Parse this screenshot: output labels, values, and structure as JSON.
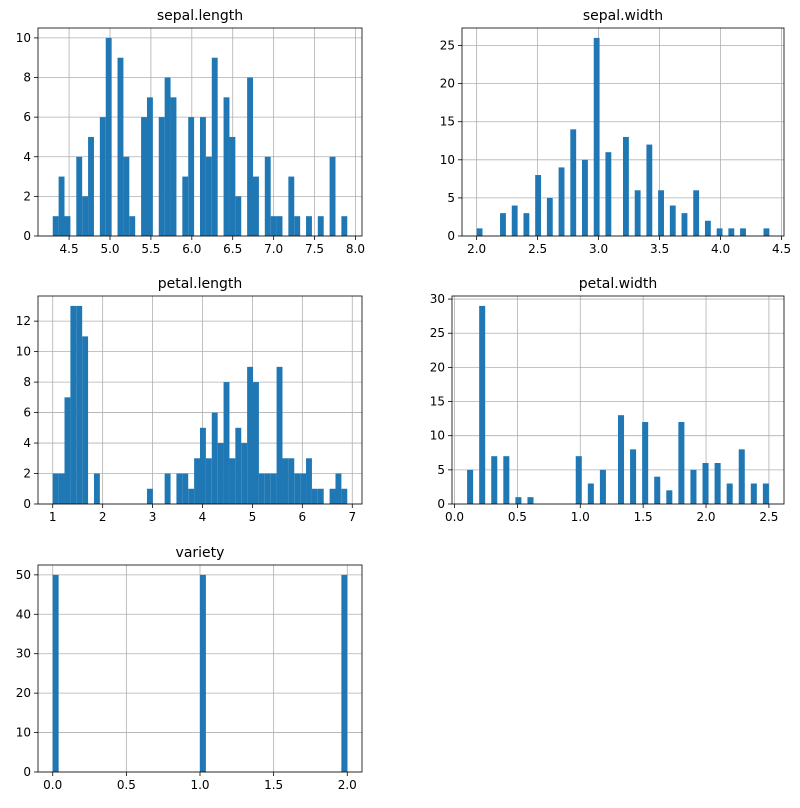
{
  "chart_data": [
    {
      "type": "histogram",
      "title": "sepal.length",
      "color": "#1f77b4",
      "grid": true,
      "bins": [
        4.3,
        4.372,
        4.444,
        4.516,
        4.588,
        4.66,
        4.732,
        4.804,
        4.876,
        4.948,
        5.02,
        5.092,
        5.164,
        5.236,
        5.308,
        5.38,
        5.452,
        5.524,
        5.596,
        5.668,
        5.74,
        5.812,
        5.884,
        5.956,
        6.028,
        6.1,
        6.172,
        6.244,
        6.316,
        6.388,
        6.46,
        6.532,
        6.604,
        6.676,
        6.748,
        6.82,
        6.892,
        6.964,
        7.036,
        7.108,
        7.18,
        7.252,
        7.324,
        7.396,
        7.468,
        7.54,
        7.612,
        7.684,
        7.756,
        7.828,
        7.9
      ],
      "counts": [
        1,
        3,
        1,
        0,
        4,
        2,
        5,
        0,
        6,
        10,
        0,
        9,
        4,
        1,
        0,
        6,
        7,
        0,
        6,
        8,
        7,
        0,
        3,
        6,
        0,
        6,
        4,
        9,
        0,
        7,
        5,
        2,
        0,
        8,
        3,
        0,
        4,
        1,
        1,
        0,
        3,
        1,
        0,
        1,
        0,
        1,
        0,
        4,
        0,
        1
      ],
      "xlim": [
        4.12,
        8.08
      ],
      "ylim": [
        0,
        10.5
      ],
      "xticks": [
        4.5,
        {
          "value": 5,
          "label": "5.0"
        },
        5.5,
        {
          "value": 6,
          "label": "6.0"
        },
        6.5,
        {
          "value": 7,
          "label": "7.0"
        },
        7.5,
        {
          "value": 8,
          "label": "8.0"
        }
      ],
      "yticks": [
        0,
        2,
        4,
        6,
        8,
        10
      ]
    },
    {
      "type": "histogram",
      "title": "sepal.width",
      "color": "#1f77b4",
      "grid": true,
      "bins": [
        2,
        2.048,
        2.096,
        2.144,
        2.192,
        2.24,
        2.288,
        2.336,
        2.384,
        2.432,
        2.48,
        2.528,
        2.576,
        2.624,
        2.672,
        2.72,
        2.768,
        2.816,
        2.864,
        2.912,
        2.96,
        3.008,
        3.056,
        3.104,
        3.152,
        3.2,
        3.248,
        3.296,
        3.344,
        3.392,
        3.44,
        3.488,
        3.536,
        3.584,
        3.632,
        3.68,
        3.728,
        3.776,
        3.824,
        3.872,
        3.92,
        3.968,
        4.016,
        4.064,
        4.112,
        4.16,
        4.208,
        4.256,
        4.304,
        4.352,
        4.4
      ],
      "counts": [
        1,
        0,
        0,
        0,
        3,
        0,
        4,
        0,
        3,
        0,
        8,
        0,
        5,
        0,
        9,
        0,
        14,
        0,
        10,
        0,
        26,
        0,
        11,
        0,
        0,
        13,
        0,
        6,
        0,
        12,
        0,
        6,
        0,
        4,
        0,
        3,
        0,
        6,
        0,
        2,
        0,
        1,
        0,
        1,
        0,
        1,
        0,
        0,
        0,
        1
      ],
      "xlim": [
        1.88,
        4.52
      ],
      "ylim": [
        0,
        27.3
      ],
      "xticks": [
        {
          "value": 2,
          "label": "2.0"
        },
        2.5,
        {
          "value": 3,
          "label": "3.0"
        },
        3.5,
        {
          "value": 4,
          "label": "4.0"
        },
        4.5
      ],
      "yticks": [
        0,
        5,
        10,
        15,
        20,
        25
      ]
    },
    {
      "type": "histogram",
      "title": "petal.length",
      "color": "#1f77b4",
      "grid": true,
      "bins": [
        1,
        1.118,
        1.236,
        1.354,
        1.472,
        1.59,
        1.708,
        1.826,
        1.944,
        2.062,
        2.18,
        2.298,
        2.416,
        2.534,
        2.652,
        2.77,
        2.888,
        3.006,
        3.124,
        3.242,
        3.36,
        3.478,
        3.596,
        3.714,
        3.832,
        3.95,
        4.068,
        4.186,
        4.304,
        4.422,
        4.54,
        4.658,
        4.776,
        4.894,
        5.012,
        5.13,
        5.248,
        5.366,
        5.484,
        5.602,
        5.72,
        5.838,
        5.956,
        6.074,
        6.192,
        6.31,
        6.428,
        6.546,
        6.664,
        6.782,
        6.9
      ],
      "counts": [
        2,
        2,
        7,
        13,
        13,
        11,
        0,
        2,
        0,
        0,
        0,
        0,
        0,
        0,
        0,
        0,
        1,
        0,
        0,
        2,
        0,
        2,
        2,
        1,
        3,
        5,
        3,
        6,
        4,
        8,
        3,
        5,
        4,
        9,
        8,
        2,
        2,
        2,
        9,
        3,
        3,
        2,
        2,
        3,
        1,
        1,
        0,
        1,
        2,
        1
      ],
      "xlim": [
        0.705,
        7.195
      ],
      "ylim": [
        0,
        13.65
      ],
      "xticks": [
        1,
        2,
        3,
        4,
        5,
        6,
        7
      ],
      "yticks": [
        0,
        2,
        4,
        6,
        8,
        10,
        12
      ]
    },
    {
      "type": "histogram",
      "title": "petal.width",
      "color": "#1f77b4",
      "grid": true,
      "bins": [
        0.1,
        0.148,
        0.196,
        0.244,
        0.292,
        0.34,
        0.388,
        0.436,
        0.484,
        0.532,
        0.58,
        0.628,
        0.676,
        0.724,
        0.772,
        0.82,
        0.868,
        0.916,
        0.964,
        1.012,
        1.06,
        1.108,
        1.156,
        1.204,
        1.252,
        1.3,
        1.348,
        1.396,
        1.444,
        1.492,
        1.54,
        1.588,
        1.636,
        1.684,
        1.732,
        1.78,
        1.828,
        1.876,
        1.924,
        1.972,
        2.02,
        2.068,
        2.116,
        2.164,
        2.212,
        2.26,
        2.308,
        2.356,
        2.404,
        2.452,
        2.5
      ],
      "counts": [
        5,
        0,
        29,
        0,
        7,
        0,
        7,
        0,
        1,
        0,
        1,
        0,
        0,
        0,
        0,
        0,
        0,
        0,
        7,
        0,
        3,
        0,
        5,
        0,
        0,
        13,
        0,
        8,
        0,
        12,
        0,
        4,
        0,
        2,
        0,
        12,
        0,
        5,
        0,
        6,
        0,
        6,
        0,
        3,
        0,
        8,
        0,
        3,
        0,
        3
      ],
      "xlim": [
        -0.02,
        2.62
      ],
      "ylim": [
        0,
        30.45
      ],
      "xticks": [
        {
          "value": 0,
          "label": "0.0"
        },
        0.5,
        {
          "value": 1,
          "label": "1.0"
        },
        1.5,
        {
          "value": 2,
          "label": "2.0"
        },
        2.5
      ],
      "yticks": [
        0,
        5,
        10,
        15,
        20,
        25,
        30
      ]
    },
    {
      "type": "histogram",
      "title": "variety",
      "color": "#1f77b4",
      "grid": true,
      "bins": [
        0,
        0.04,
        0.08,
        0.12,
        0.16,
        0.2,
        0.24,
        0.28,
        0.32,
        0.36,
        0.4,
        0.44,
        0.48,
        0.52,
        0.56,
        0.6,
        0.64,
        0.68,
        0.72,
        0.76,
        0.8,
        0.84,
        0.88,
        0.92,
        0.96,
        1,
        1.04,
        1.08,
        1.12,
        1.16,
        1.2,
        1.24,
        1.28,
        1.32,
        1.36,
        1.4,
        1.44,
        1.48,
        1.52,
        1.56,
        1.6,
        1.64,
        1.68,
        1.72,
        1.76,
        1.8,
        1.84,
        1.88,
        1.92,
        1.96,
        2
      ],
      "counts": [
        50,
        0,
        0,
        0,
        0,
        0,
        0,
        0,
        0,
        0,
        0,
        0,
        0,
        0,
        0,
        0,
        0,
        0,
        0,
        0,
        0,
        0,
        0,
        0,
        0,
        50,
        0,
        0,
        0,
        0,
        0,
        0,
        0,
        0,
        0,
        0,
        0,
        0,
        0,
        0,
        0,
        0,
        0,
        0,
        0,
        0,
        0,
        0,
        0,
        50
      ],
      "xlim": [
        -0.1,
        2.1
      ],
      "ylim": [
        0,
        52.5
      ],
      "xticks": [
        {
          "value": 0,
          "label": "0.0"
        },
        0.5,
        {
          "value": 1,
          "label": "1.0"
        },
        1.5,
        {
          "value": 2,
          "label": "2.0"
        }
      ],
      "yticks": [
        0,
        10,
        20,
        30,
        40,
        50
      ]
    }
  ]
}
